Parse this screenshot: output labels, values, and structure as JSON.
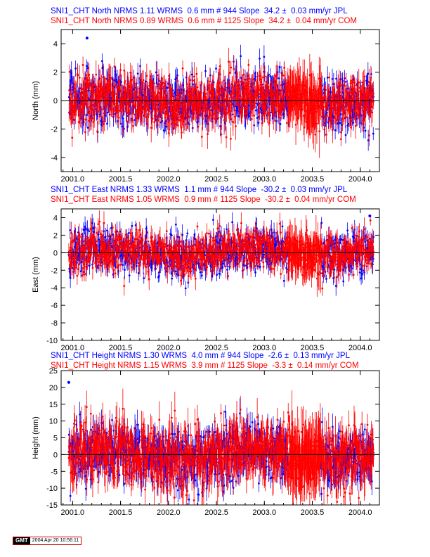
{
  "colors": {
    "jpl": "#0000ff",
    "com": "#ff0000",
    "axis": "#000000",
    "zero_line": "#000000"
  },
  "footer": {
    "logo": "GMT",
    "timestamp": "2004 Apr 20 10:56:11"
  },
  "chart_data": [
    {
      "type": "scatter",
      "component": "north",
      "title_lines": [
        "SNI1_CHT North NRMS 1.11 WRMS  0.6 mm # 944 Slope  34.2 ±  0.03 mm/yr JPL",
        "SNI1_CHT North NRMS 0.89 WRMS  0.6 mm # 1125 Slope  34.2 ±  0.04 mm/yr COM"
      ],
      "ylabel": "North (mm)",
      "xlim": [
        2000.88,
        2004.2
      ],
      "ylim": [
        -5,
        5
      ],
      "xticks": [
        "2001.0",
        "2001.5",
        "2002.0",
        "2002.5",
        "2003.0",
        "2003.5",
        "2004.0"
      ],
      "yticks": [
        "4",
        "2",
        "0",
        "-2",
        "-4"
      ],
      "series": [
        {
          "name": "JPL",
          "count": 944,
          "wrms_mm": 0.6,
          "nrms": 1.11,
          "slope_mm_per_yr": 34.2,
          "slope_sigma": 0.03,
          "x_range": [
            2000.96,
            2004.14
          ],
          "scatter_mm": 0.9,
          "typical_error_mm": 0.6
        },
        {
          "name": "COM",
          "count": 1125,
          "wrms_mm": 0.6,
          "nrms": 0.89,
          "slope_mm_per_yr": 34.2,
          "slope_sigma": 0.04,
          "x_range": [
            2000.96,
            2004.14
          ],
          "scatter_mm": 0.9,
          "typical_error_mm": 0.7
        }
      ],
      "dense_interval": [
        2003.25,
        2003.59
      ],
      "notable_points": [
        {
          "series": "JPL",
          "x": 2001.15,
          "y": 4.4
        }
      ]
    },
    {
      "type": "scatter",
      "component": "east",
      "title_lines": [
        "SNI1_CHT East NRMS 1.33 WRMS  1.1 mm # 944 Slope  -30.2 ±  0.03 mm/yr JPL",
        "SNI1_CHT East NRMS 1.05 WRMS  0.9 mm # 1125 Slope  -30.2 ±  0.04 mm/yr COM"
      ],
      "ylabel": "East (mm)",
      "xlim": [
        2000.88,
        2004.2
      ],
      "ylim": [
        -10,
        5
      ],
      "xticks": [
        "2001.0",
        "2001.5",
        "2002.0",
        "2002.5",
        "2003.0",
        "2003.5",
        "2004.0"
      ],
      "yticks": [
        "4",
        "2",
        "0",
        "-2",
        "-4",
        "-6",
        "-8",
        "-10"
      ],
      "series": [
        {
          "name": "JPL",
          "count": 944,
          "wrms_mm": 1.1,
          "nrms": 1.33,
          "slope_mm_per_yr": -30.2,
          "slope_sigma": 0.03,
          "x_range": [
            2000.96,
            2004.14
          ],
          "scatter_mm": 1.2,
          "typical_error_mm": 0.8
        },
        {
          "name": "COM",
          "count": 1125,
          "wrms_mm": 0.9,
          "nrms": 1.05,
          "slope_mm_per_yr": -30.2,
          "slope_sigma": 0.04,
          "x_range": [
            2000.96,
            2004.14
          ],
          "scatter_mm": 1.1,
          "typical_error_mm": 0.9
        }
      ],
      "dense_interval": [
        2003.25,
        2003.59
      ],
      "notable_points": [
        {
          "series": "JPL",
          "x": 2004.1,
          "y": 4.2
        }
      ]
    },
    {
      "type": "scatter",
      "component": "height",
      "title_lines": [
        "SNI1_CHT Height NRMS 1.30 WRMS  4.0 mm # 944 Slope  -2.6 ±  0.13 mm/yr JPL",
        "SNI1_CHT Height NRMS 1.15 WRMS  3.9 mm # 1125 Slope  -3.3 ±  0.14 mm/yr COM"
      ],
      "ylabel": "Height (mm)",
      "xlim": [
        2000.88,
        2004.2
      ],
      "ylim": [
        -15,
        25
      ],
      "xticks": [
        "2001.0",
        "2001.5",
        "2002.0",
        "2002.5",
        "2003.0",
        "2003.5",
        "2004.0"
      ],
      "yticks": [
        "25",
        "20",
        "15",
        "10",
        "5",
        "0",
        "-5",
        "-10",
        "-15"
      ],
      "series": [
        {
          "name": "JPL",
          "count": 944,
          "wrms_mm": 4.0,
          "nrms": 1.3,
          "slope_mm_per_yr": -2.6,
          "slope_sigma": 0.13,
          "x_range": [
            2000.96,
            2004.14
          ],
          "scatter_mm": 4.0,
          "typical_error_mm": 3.0
        },
        {
          "name": "COM",
          "count": 1125,
          "wrms_mm": 3.9,
          "nrms": 1.15,
          "slope_mm_per_yr": -3.3,
          "slope_sigma": 0.14,
          "x_range": [
            2000.96,
            2004.14
          ],
          "scatter_mm": 4.5,
          "typical_error_mm": 4.0
        }
      ],
      "dense_interval": [
        2003.25,
        2003.59
      ],
      "notable_points": [
        {
          "series": "JPL",
          "x": 2000.96,
          "y": 21.5
        }
      ]
    }
  ]
}
